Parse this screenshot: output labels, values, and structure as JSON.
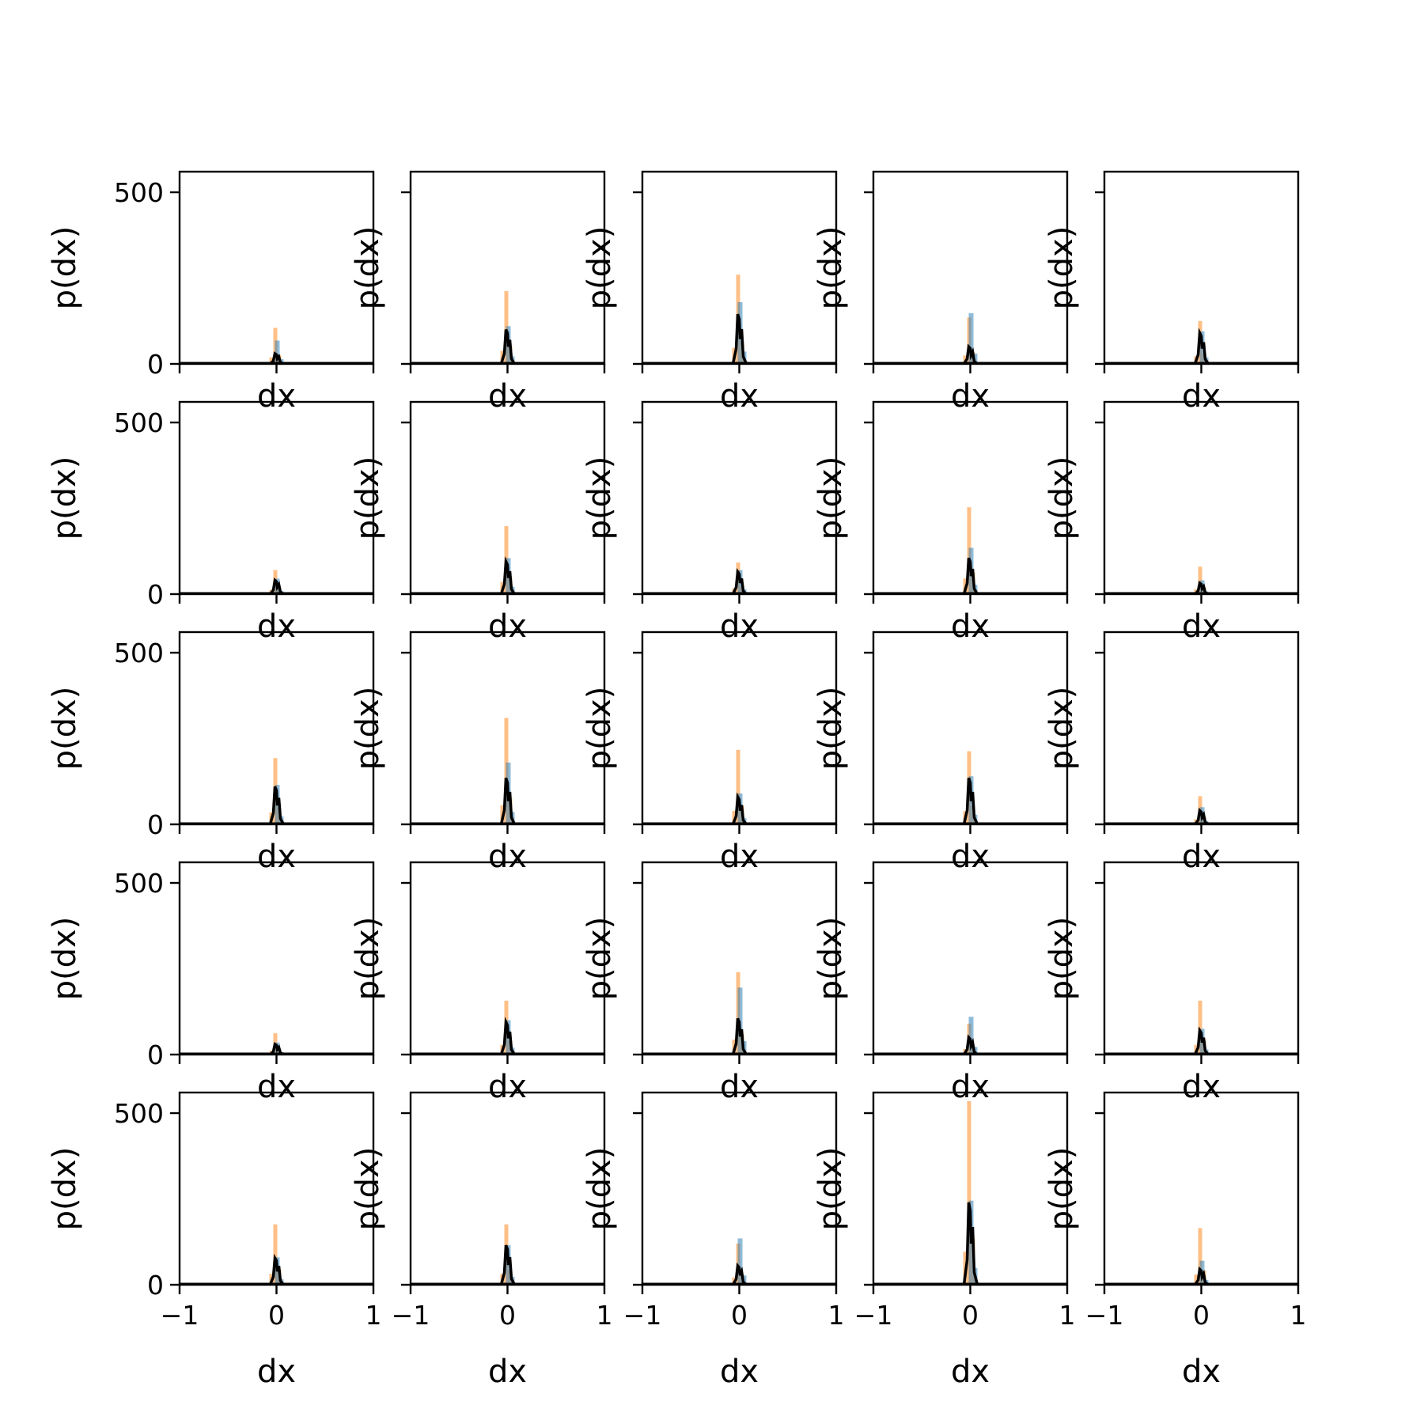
{
  "chart_data": {
    "type": "bar",
    "layout": {
      "rows": 5,
      "cols": 5,
      "sharex": true,
      "sharey": true
    },
    "xlim": [
      -1,
      1
    ],
    "ylim": [
      0,
      560
    ],
    "xticks": [
      -1,
      0,
      1
    ],
    "xtick_labels": [
      "−1",
      "0",
      "1"
    ],
    "yticks": [
      0,
      500
    ],
    "ytick_labels": [
      "0",
      "500"
    ],
    "xlabel": "dx",
    "ylabel": "p(dx)",
    "legend": "none",
    "grid": false,
    "series_styles": [
      {
        "key": "orange",
        "color": "#ff7f0e",
        "opacity": 0.5,
        "kind": "histogram"
      },
      {
        "key": "blue",
        "color": "#1f77b4",
        "opacity": 0.5,
        "kind": "histogram"
      },
      {
        "key": "black",
        "color": "#000000",
        "opacity": 1.0,
        "kind": "line"
      }
    ],
    "panels": [
      {
        "orange": 105,
        "blue": 68,
        "black": 30
      },
      {
        "orange": 212,
        "blue": 110,
        "black": 100
      },
      {
        "orange": 260,
        "blue": 180,
        "black": 145
      },
      {
        "orange": 135,
        "blue": 148,
        "black": 50
      },
      {
        "orange": 125,
        "blue": 95,
        "black": 90
      },
      {
        "orange": 70,
        "blue": 45,
        "black": 40
      },
      {
        "orange": 198,
        "blue": 105,
        "black": 95
      },
      {
        "orange": 92,
        "blue": 70,
        "black": 65
      },
      {
        "orange": 253,
        "blue": 135,
        "black": 105
      },
      {
        "orange": 80,
        "blue": 40,
        "black": 32
      },
      {
        "orange": 193,
        "blue": 115,
        "black": 110
      },
      {
        "orange": 310,
        "blue": 180,
        "black": 135
      },
      {
        "orange": 217,
        "blue": 90,
        "black": 80
      },
      {
        "orange": 213,
        "blue": 140,
        "black": 135
      },
      {
        "orange": 82,
        "blue": 50,
        "black": 40
      },
      {
        "orange": 62,
        "blue": 35,
        "black": 30
      },
      {
        "orange": 157,
        "blue": 100,
        "black": 95
      },
      {
        "orange": 240,
        "blue": 195,
        "black": 105
      },
      {
        "orange": 90,
        "blue": 110,
        "black": 50
      },
      {
        "orange": 157,
        "blue": 75,
        "black": 70
      },
      {
        "orange": 176,
        "blue": 80,
        "black": 78
      },
      {
        "orange": 176,
        "blue": 115,
        "black": 115
      },
      {
        "orange": 120,
        "blue": 135,
        "black": 55
      },
      {
        "orange": 535,
        "blue": 245,
        "black": 240
      },
      {
        "orange": 165,
        "blue": 70,
        "black": 45
      }
    ]
  }
}
